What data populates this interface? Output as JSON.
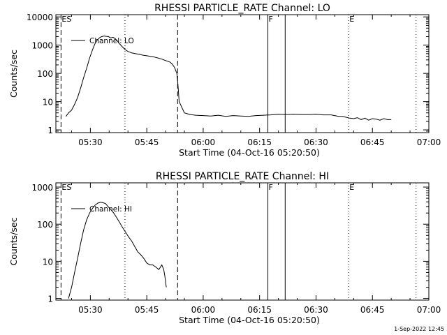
{
  "footer_text": "1-Sep-2022 12:45",
  "chart_data": [
    {
      "type": "line",
      "title": "RHESSI PARTICLE_RATE Channel: LO",
      "xlabel": "Start Time (04-Oct-16 05:20:50)",
      "ylabel": "Counts/sec",
      "yscale": "log",
      "xlim": [
        320.83,
        420.0
      ],
      "ylim": [
        0.8,
        12000
      ],
      "xticks": [
        {
          "v": 330,
          "label": "05:30"
        },
        {
          "v": 345,
          "label": "05:45"
        },
        {
          "v": 360,
          "label": "06:00"
        },
        {
          "v": 375,
          "label": "06:15"
        },
        {
          "v": 390,
          "label": "06:30"
        },
        {
          "v": 405,
          "label": "06:45"
        },
        {
          "v": 420,
          "label": "07:00"
        }
      ],
      "yticks": [
        {
          "v": 1,
          "label": "1"
        },
        {
          "v": 10,
          "label": "10"
        },
        {
          "v": 100,
          "label": "100"
        },
        {
          "v": 1000,
          "label": "1000"
        },
        {
          "v": 10000,
          "label": "10000"
        }
      ],
      "series": [
        {
          "name": "Channel: LO",
          "x": [
            323.5,
            324.2,
            325.0,
            325.8,
            326.6,
            327.4,
            328.2,
            329.0,
            329.8,
            330.6,
            331.2,
            331.8,
            332.4,
            333.0,
            333.6,
            334.2,
            334.8,
            335.4,
            336.0,
            336.6,
            337.2,
            337.8,
            338.4,
            339.2,
            340.0,
            341.0,
            342.0,
            343.0,
            344.0,
            345.0,
            346.0,
            347.0,
            348.0,
            349.0,
            349.8,
            350.5,
            351.2,
            351.8,
            352.4,
            353.0,
            353.3,
            353.6,
            355.0,
            356.5,
            358.0,
            360.0,
            362.0,
            364.0,
            366.0,
            368.0,
            370.0,
            372.0,
            374.0,
            376.0,
            378.0,
            380.0,
            382.0,
            384.0,
            386.0,
            388.0,
            390.0,
            392.0,
            394.0,
            396.0,
            397.0,
            398.0,
            399.0,
            400.0,
            401.0,
            402.0,
            403.0,
            404.0,
            405.0,
            406.0,
            407.0,
            408.0,
            409.0,
            410.0
          ],
          "y": [
            3,
            4,
            5,
            8,
            14,
            30,
            70,
            150,
            350,
            700,
            1100,
            1500,
            1800,
            2000,
            2100,
            2050,
            2000,
            1800,
            1900,
            1700,
            1400,
            1100,
            900,
            700,
            600,
            530,
            500,
            470,
            440,
            420,
            400,
            380,
            350,
            320,
            290,
            270,
            250,
            210,
            160,
            100,
            40,
            10,
            4,
            3.5,
            3.3,
            3.2,
            3.1,
            3.3,
            3.0,
            3.2,
            3.1,
            3.0,
            3.2,
            3.3,
            3.4,
            3.6,
            3.5,
            3.6,
            3.5,
            3.5,
            3.6,
            3.4,
            3.4,
            3.0,
            3.0,
            2.8,
            2.6,
            2.5,
            2.7,
            2.3,
            2.6,
            2.2,
            2.5,
            2.4,
            2.2,
            2.5,
            2.3,
            2.3
          ]
        }
      ],
      "vlines": [
        {
          "x": 322.2,
          "style": "dashed",
          "label": "ES"
        },
        {
          "x": 339.2,
          "style": "dotted",
          "label": ""
        },
        {
          "x": 353.2,
          "style": "dashed",
          "label": ""
        },
        {
          "x": 377.2,
          "style": "solid",
          "label": "F"
        },
        {
          "x": 381.8,
          "style": "solid",
          "label": ""
        },
        {
          "x": 398.7,
          "style": "dotted",
          "label": "E"
        },
        {
          "x": 416.6,
          "style": "dotted",
          "label": ""
        }
      ]
    },
    {
      "type": "line",
      "title": "RHESSI PARTICLE_RATE Channel: HI",
      "xlabel": "Start Time (04-Oct-16 05:20:50)",
      "ylabel": "Counts/sec",
      "yscale": "log",
      "xlim": [
        320.83,
        420.0
      ],
      "ylim": [
        0.9,
        1300
      ],
      "xticks": [
        {
          "v": 330,
          "label": "05:30"
        },
        {
          "v": 345,
          "label": "05:45"
        },
        {
          "v": 360,
          "label": "06:00"
        },
        {
          "v": 375,
          "label": "06:15"
        },
        {
          "v": 390,
          "label": "06:30"
        },
        {
          "v": 405,
          "label": "06:45"
        },
        {
          "v": 420,
          "label": "07:00"
        }
      ],
      "yticks": [
        {
          "v": 1,
          "label": "1"
        },
        {
          "v": 10,
          "label": "10"
        },
        {
          "v": 100,
          "label": "100"
        },
        {
          "v": 1000,
          "label": "1000"
        }
      ],
      "series": [
        {
          "name": "Channel: HI",
          "x": [
            324.2,
            325.0,
            325.8,
            326.6,
            327.4,
            328.2,
            329.0,
            329.8,
            330.6,
            331.3,
            332.0,
            332.7,
            333.3,
            334.0,
            334.7,
            335.4,
            336.2,
            337.0,
            337.8,
            338.6,
            339.4,
            340.2,
            341.0,
            341.8,
            342.6,
            343.4,
            344.2,
            345.0,
            345.8,
            346.6,
            347.4,
            348.2,
            349.0,
            349.5,
            349.8,
            350.2
          ],
          "y": [
            1,
            2,
            5,
            12,
            30,
            70,
            130,
            200,
            270,
            330,
            370,
            390,
            380,
            360,
            300,
            250,
            200,
            150,
            110,
            80,
            60,
            45,
            35,
            25,
            18,
            15,
            12,
            9,
            8,
            8,
            7,
            6,
            8,
            6,
            4,
            2
          ]
        }
      ],
      "vlines": [
        {
          "x": 322.2,
          "style": "dashed",
          "label": "ES"
        },
        {
          "x": 339.2,
          "style": "dotted",
          "label": ""
        },
        {
          "x": 353.2,
          "style": "dashed",
          "label": ""
        },
        {
          "x": 377.2,
          "style": "solid",
          "label": "F"
        },
        {
          "x": 381.8,
          "style": "solid",
          "label": ""
        },
        {
          "x": 398.7,
          "style": "dotted",
          "label": "E"
        },
        {
          "x": 416.6,
          "style": "dotted",
          "label": ""
        }
      ]
    }
  ]
}
